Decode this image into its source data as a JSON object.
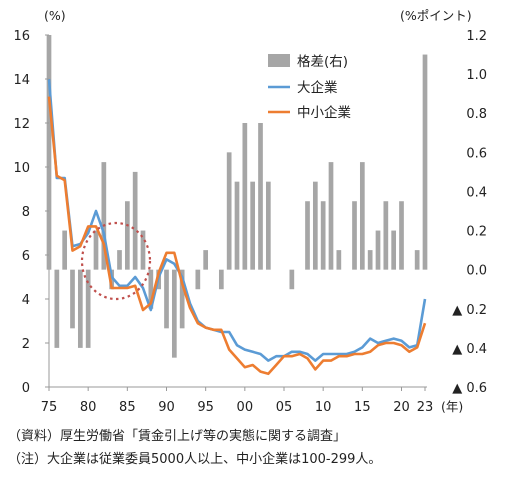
{
  "chart_data": {
    "type": "bar+line",
    "left_unit": "(%)",
    "right_unit": "(%ポイント)",
    "x_unit": "(年)",
    "x_range": [
      1975,
      2023
    ],
    "left_axis": {
      "ylim": [
        0,
        16
      ],
      "ticks": [
        "0",
        "2",
        "4",
        "6",
        "8",
        "10",
        "12",
        "14",
        "16"
      ]
    },
    "right_axis": {
      "ylim": [
        -0.6,
        1.2
      ],
      "ticks": [
        {
          "value": 1.2,
          "label": "1.2"
        },
        {
          "value": 1.0,
          "label": "1.0"
        },
        {
          "value": 0.8,
          "label": "0.8"
        },
        {
          "value": 0.6,
          "label": "0.6"
        },
        {
          "value": 0.4,
          "label": "0.4"
        },
        {
          "value": 0.2,
          "label": "0.2"
        },
        {
          "value": 0.0,
          "label": "0.0"
        },
        {
          "value": -0.2,
          "label": "▲ 0.2"
        },
        {
          "value": -0.4,
          "label": "▲ 0.4"
        },
        {
          "value": -0.6,
          "label": "▲ 0.6"
        }
      ]
    },
    "x_ticks": [
      {
        "year": 1975,
        "label": "75"
      },
      {
        "year": 1980,
        "label": "80"
      },
      {
        "year": 1985,
        "label": "85"
      },
      {
        "year": 1990,
        "label": "90"
      },
      {
        "year": 1995,
        "label": "95"
      },
      {
        "year": 2000,
        "label": "00"
      },
      {
        "year": 2005,
        "label": "05"
      },
      {
        "year": 2010,
        "label": "10"
      },
      {
        "year": 2015,
        "label": "15"
      },
      {
        "year": 2020,
        "label": "20"
      },
      {
        "year": 2023,
        "label": "23"
      }
    ],
    "years": [
      1975,
      1976,
      1977,
      1978,
      1979,
      1980,
      1981,
      1982,
      1983,
      1984,
      1985,
      1986,
      1987,
      1988,
      1989,
      1990,
      1991,
      1992,
      1993,
      1994,
      1995,
      1996,
      1997,
      1998,
      1999,
      2000,
      2001,
      2002,
      2003,
      2004,
      2005,
      2006,
      2007,
      2008,
      2009,
      2010,
      2011,
      2012,
      2013,
      2014,
      2015,
      2016,
      2017,
      2018,
      2019,
      2020,
      2021,
      2022,
      2023
    ],
    "series": [
      {
        "name": "格差(右)",
        "type": "bar",
        "axis": "right",
        "color": "#a6a6a6",
        "values": [
          1.2,
          -0.4,
          0.2,
          -0.3,
          -0.4,
          -0.4,
          0.2,
          0.55,
          -0.1,
          0.1,
          0.35,
          0.5,
          0.2,
          -0.2,
          -0.1,
          -0.3,
          -0.45,
          -0.3,
          0.0,
          -0.1,
          0.1,
          0.0,
          -0.1,
          0.6,
          0.45,
          0.75,
          0.45,
          0.75,
          0.45,
          0.0,
          0.0,
          -0.1,
          0.0,
          0.35,
          0.45,
          0.35,
          0.55,
          0.1,
          0.0,
          0.35,
          0.55,
          0.1,
          0.2,
          0.35,
          0.2,
          0.35,
          0.0,
          0.1,
          1.1
        ]
      },
      {
        "name": "大企業",
        "type": "line",
        "axis": "left",
        "color": "#5b9bd5",
        "values": [
          14.0,
          9.5,
          9.5,
          6.4,
          6.5,
          7.0,
          8.0,
          7.0,
          5.0,
          4.6,
          4.6,
          5.0,
          4.5,
          3.5,
          5.0,
          5.8,
          5.6,
          5.0,
          3.8,
          3.0,
          2.7,
          2.6,
          2.5,
          2.5,
          1.9,
          1.7,
          1.6,
          1.5,
          1.2,
          1.4,
          1.4,
          1.6,
          1.6,
          1.5,
          1.2,
          1.5,
          1.5,
          1.5,
          1.5,
          1.6,
          1.8,
          2.2,
          2.0,
          2.1,
          2.2,
          2.1,
          1.8,
          1.9,
          4.0
        ]
      },
      {
        "name": "中小企業",
        "type": "line",
        "axis": "left",
        "color": "#ed7d31",
        "values": [
          13.2,
          9.6,
          9.4,
          6.2,
          6.4,
          7.3,
          7.3,
          6.5,
          4.5,
          4.5,
          4.5,
          4.6,
          3.5,
          3.8,
          5.2,
          6.1,
          6.1,
          4.7,
          3.6,
          2.9,
          2.7,
          2.6,
          2.6,
          1.7,
          1.3,
          0.9,
          1.0,
          0.7,
          0.6,
          1.0,
          1.4,
          1.4,
          1.5,
          1.3,
          0.8,
          1.2,
          1.2,
          1.4,
          1.4,
          1.5,
          1.5,
          1.6,
          1.9,
          2.0,
          2.0,
          1.9,
          1.6,
          1.8,
          2.9
        ]
      }
    ],
    "legend": [
      "格差(右)",
      "大企業",
      "中小企業"
    ],
    "legend_position": "top-right",
    "annotation": "dotted red circle around 1982–1986"
  },
  "notes": {
    "source": "（資料）厚生労働省「賃金引上げ等の実態に関する調査」",
    "note": "（注）大企業は従業委員5000人以上、中小企業は100-299人。"
  },
  "colors": {
    "bar": "#a6a6a6",
    "large": "#5b9bd5",
    "small": "#ed7d31",
    "circle": "#c0504d"
  }
}
